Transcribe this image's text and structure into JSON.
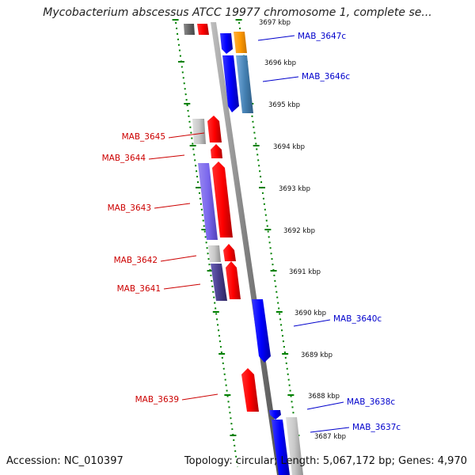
{
  "title": "Mycobacterium abscessus ATCC 19977 chromosome 1, complete se...",
  "footer": {
    "accession": "Accession: NC_010397",
    "summary": "Topology: circular; Length: 5,067,172 bp; Genes: 4,970"
  },
  "colors": {
    "forward_label": "#cc0000",
    "reverse_label": "#0000cc",
    "ruler": "#008000",
    "backbone": "#888888"
  },
  "tick_labels": [
    {
      "text": "3697 kbp"
    },
    {
      "text": "3696 kbp"
    },
    {
      "text": "3695 kbp"
    },
    {
      "text": "3694 kbp"
    },
    {
      "text": "3693 kbp"
    },
    {
      "text": "3692 kbp"
    },
    {
      "text": "3691 kbp"
    },
    {
      "text": "3690 kbp"
    },
    {
      "text": "3689 kbp"
    },
    {
      "text": "3688 kbp"
    },
    {
      "text": "3687 kbp"
    }
  ],
  "gene_labels": [
    {
      "text": "MAB_3647c",
      "strand": "reverse"
    },
    {
      "text": "MAB_3646c",
      "strand": "reverse"
    },
    {
      "text": "MAB_3645",
      "strand": "forward"
    },
    {
      "text": "MAB_3644",
      "strand": "forward"
    },
    {
      "text": "MAB_3643",
      "strand": "forward"
    },
    {
      "text": "MAB_3642",
      "strand": "forward"
    },
    {
      "text": "MAB_3641",
      "strand": "forward"
    },
    {
      "text": "MAB_3640c",
      "strand": "reverse"
    },
    {
      "text": "MAB_3639",
      "strand": "forward"
    },
    {
      "text": "MAB_3638c",
      "strand": "reverse"
    },
    {
      "text": "MAB_3637c",
      "strand": "reverse"
    }
  ]
}
